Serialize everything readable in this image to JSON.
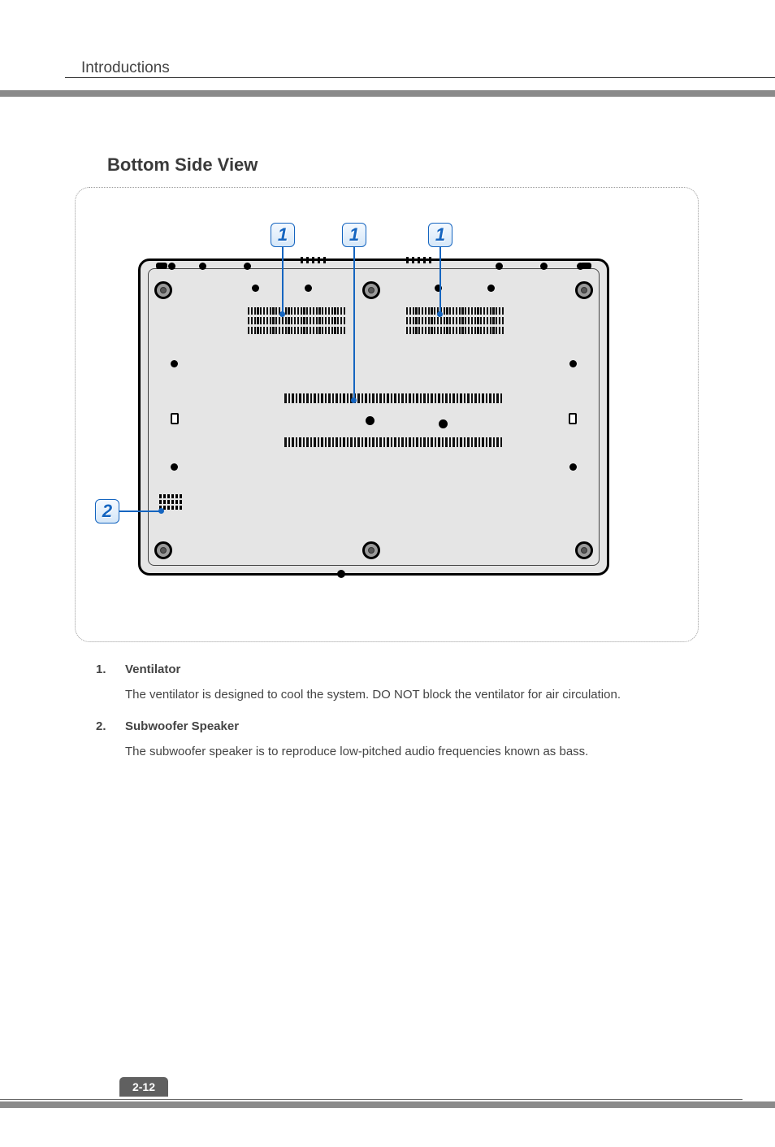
{
  "header": {
    "section": "Introductions"
  },
  "section_title": "Bottom Side View",
  "callouts": {
    "c1a": "1",
    "c1b": "1",
    "c1c": "1",
    "c2": "2"
  },
  "items": [
    {
      "num": "1.",
      "title": "Ventilator",
      "text": "The ventilator is designed to cool the system. DO NOT block the ventilator for air circulation."
    },
    {
      "num": "2.",
      "title": "Subwoofer Speaker",
      "text": "The subwoofer speaker is to reproduce low-pitched audio frequencies known as bass."
    }
  ],
  "page_number": "2-12",
  "style": {
    "accent": "#1565c0",
    "band_gray": "#8a8a8a",
    "chassis_fill": "#e5e5e5"
  }
}
